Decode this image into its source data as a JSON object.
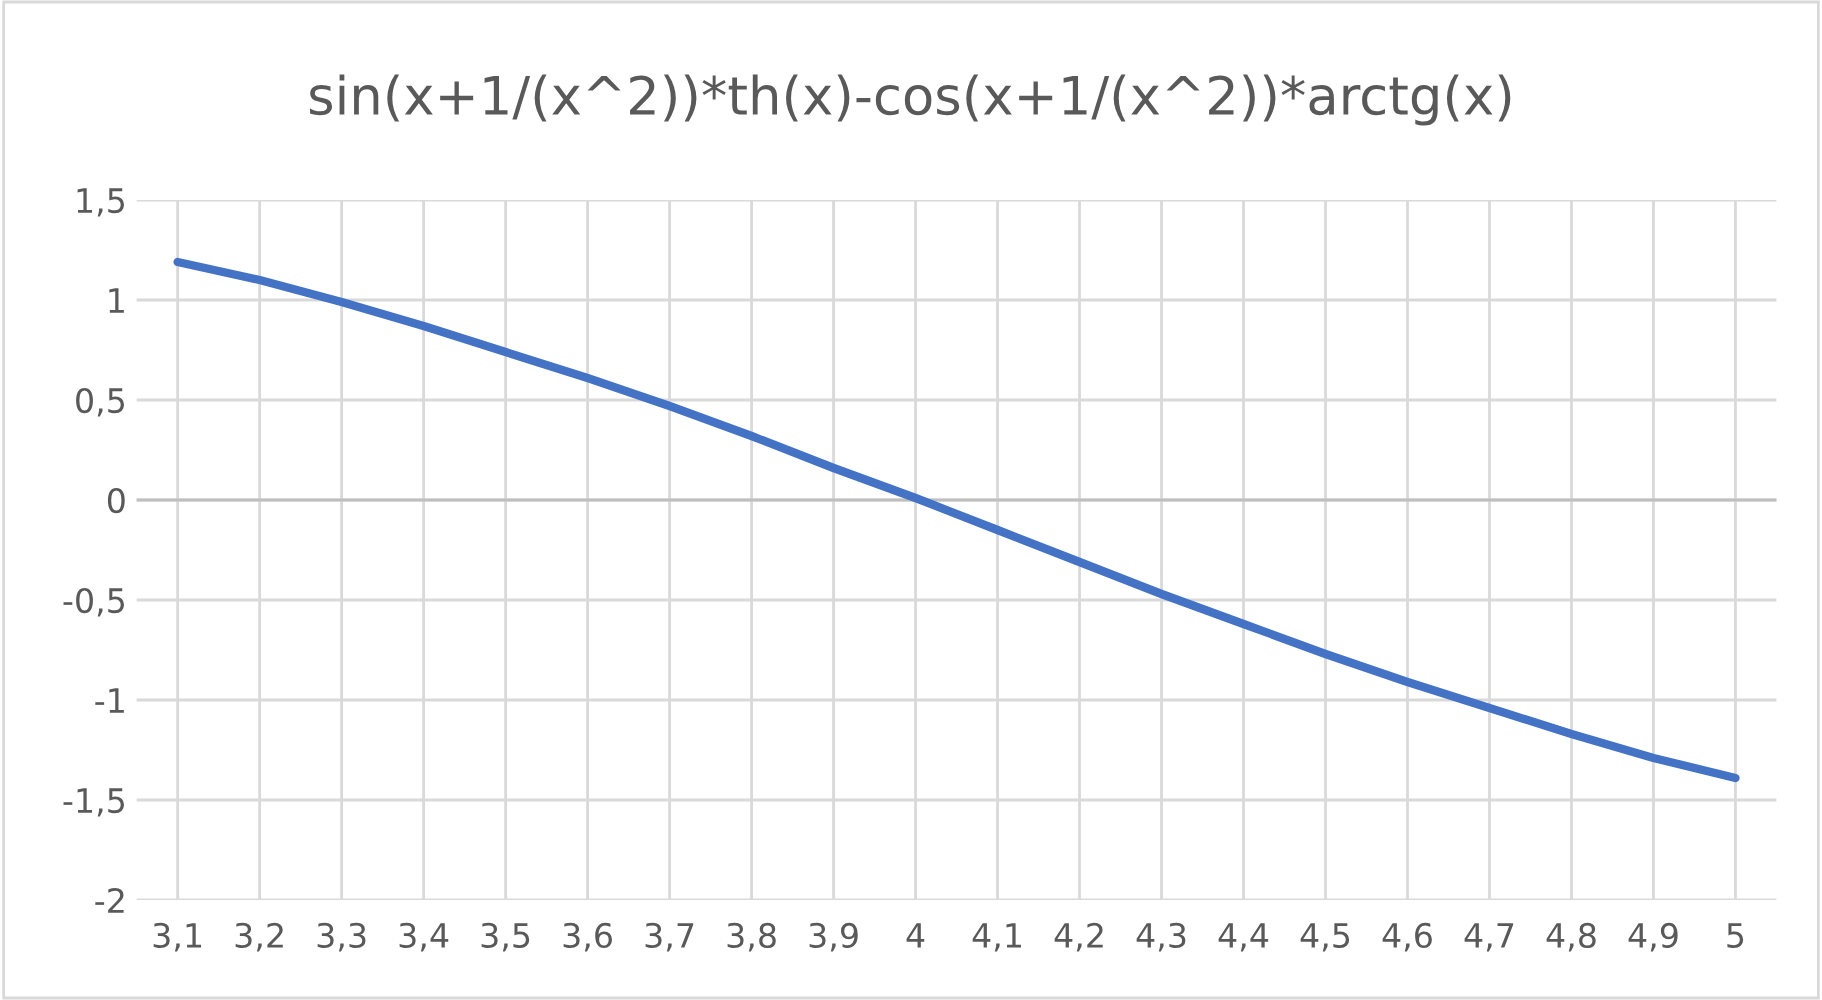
{
  "chart_data": {
    "type": "line",
    "title": "sin(x+1/(x^2))*th(x)-cos(x+1/(x^2))*arctg(x)",
    "categories": [
      "3,1",
      "3,2",
      "3,3",
      "3,4",
      "3,5",
      "3,6",
      "3,7",
      "3,8",
      "3,9",
      "4",
      "4,1",
      "4,2",
      "4,3",
      "4,4",
      "4,5",
      "4,6",
      "4,7",
      "4,8",
      "4,9",
      "5"
    ],
    "series": [
      {
        "color": "#4472c4",
        "values": [
          1.19,
          1.1,
          0.99,
          0.87,
          0.74,
          0.61,
          0.47,
          0.32,
          0.16,
          0.01,
          -0.15,
          -0.31,
          -0.47,
          -0.62,
          -0.77,
          -0.91,
          -1.04,
          -1.17,
          -1.29,
          -1.39
        ]
      }
    ],
    "ylim": [
      -2,
      1.5
    ],
    "yticks": [
      {
        "value": -2,
        "label": "-2"
      },
      {
        "value": -1.5,
        "label": "-1,5"
      },
      {
        "value": -1,
        "label": "-1"
      },
      {
        "value": -0.5,
        "label": "-0,5"
      },
      {
        "value": 0,
        "label": "0"
      },
      {
        "value": 0.5,
        "label": "0,5"
      },
      {
        "value": 1,
        "label": "1"
      },
      {
        "value": 1.5,
        "label": "1,5"
      }
    ],
    "grid": true,
    "marker": "none",
    "line_style": "solid"
  }
}
